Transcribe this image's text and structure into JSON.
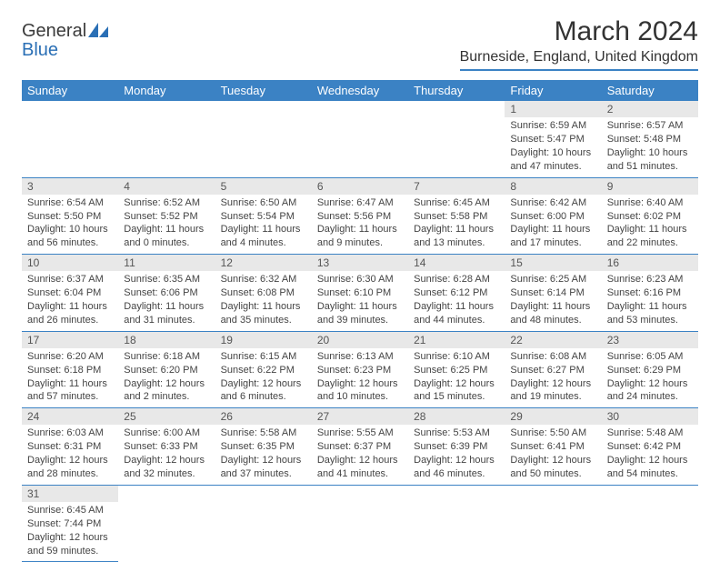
{
  "logo": {
    "general": "General",
    "blue": "Blue"
  },
  "title": "March 2024",
  "location": "Burneside, England, United Kingdom",
  "colors": {
    "header_bg": "#3b82c4",
    "header_text": "#ffffff",
    "daynum_bg": "#e8e8e8",
    "rule": "#3b82c4",
    "logo_blue": "#2a6fb5"
  },
  "weekdays": [
    "Sunday",
    "Monday",
    "Tuesday",
    "Wednesday",
    "Thursday",
    "Friday",
    "Saturday"
  ],
  "weeks": [
    [
      null,
      null,
      null,
      null,
      null,
      {
        "n": "1",
        "sunrise": "Sunrise: 6:59 AM",
        "sunset": "Sunset: 5:47 PM",
        "daylight1": "Daylight: 10 hours",
        "daylight2": "and 47 minutes."
      },
      {
        "n": "2",
        "sunrise": "Sunrise: 6:57 AM",
        "sunset": "Sunset: 5:48 PM",
        "daylight1": "Daylight: 10 hours",
        "daylight2": "and 51 minutes."
      }
    ],
    [
      {
        "n": "3",
        "sunrise": "Sunrise: 6:54 AM",
        "sunset": "Sunset: 5:50 PM",
        "daylight1": "Daylight: 10 hours",
        "daylight2": "and 56 minutes."
      },
      {
        "n": "4",
        "sunrise": "Sunrise: 6:52 AM",
        "sunset": "Sunset: 5:52 PM",
        "daylight1": "Daylight: 11 hours",
        "daylight2": "and 0 minutes."
      },
      {
        "n": "5",
        "sunrise": "Sunrise: 6:50 AM",
        "sunset": "Sunset: 5:54 PM",
        "daylight1": "Daylight: 11 hours",
        "daylight2": "and 4 minutes."
      },
      {
        "n": "6",
        "sunrise": "Sunrise: 6:47 AM",
        "sunset": "Sunset: 5:56 PM",
        "daylight1": "Daylight: 11 hours",
        "daylight2": "and 9 minutes."
      },
      {
        "n": "7",
        "sunrise": "Sunrise: 6:45 AM",
        "sunset": "Sunset: 5:58 PM",
        "daylight1": "Daylight: 11 hours",
        "daylight2": "and 13 minutes."
      },
      {
        "n": "8",
        "sunrise": "Sunrise: 6:42 AM",
        "sunset": "Sunset: 6:00 PM",
        "daylight1": "Daylight: 11 hours",
        "daylight2": "and 17 minutes."
      },
      {
        "n": "9",
        "sunrise": "Sunrise: 6:40 AM",
        "sunset": "Sunset: 6:02 PM",
        "daylight1": "Daylight: 11 hours",
        "daylight2": "and 22 minutes."
      }
    ],
    [
      {
        "n": "10",
        "sunrise": "Sunrise: 6:37 AM",
        "sunset": "Sunset: 6:04 PM",
        "daylight1": "Daylight: 11 hours",
        "daylight2": "and 26 minutes."
      },
      {
        "n": "11",
        "sunrise": "Sunrise: 6:35 AM",
        "sunset": "Sunset: 6:06 PM",
        "daylight1": "Daylight: 11 hours",
        "daylight2": "and 31 minutes."
      },
      {
        "n": "12",
        "sunrise": "Sunrise: 6:32 AM",
        "sunset": "Sunset: 6:08 PM",
        "daylight1": "Daylight: 11 hours",
        "daylight2": "and 35 minutes."
      },
      {
        "n": "13",
        "sunrise": "Sunrise: 6:30 AM",
        "sunset": "Sunset: 6:10 PM",
        "daylight1": "Daylight: 11 hours",
        "daylight2": "and 39 minutes."
      },
      {
        "n": "14",
        "sunrise": "Sunrise: 6:28 AM",
        "sunset": "Sunset: 6:12 PM",
        "daylight1": "Daylight: 11 hours",
        "daylight2": "and 44 minutes."
      },
      {
        "n": "15",
        "sunrise": "Sunrise: 6:25 AM",
        "sunset": "Sunset: 6:14 PM",
        "daylight1": "Daylight: 11 hours",
        "daylight2": "and 48 minutes."
      },
      {
        "n": "16",
        "sunrise": "Sunrise: 6:23 AM",
        "sunset": "Sunset: 6:16 PM",
        "daylight1": "Daylight: 11 hours",
        "daylight2": "and 53 minutes."
      }
    ],
    [
      {
        "n": "17",
        "sunrise": "Sunrise: 6:20 AM",
        "sunset": "Sunset: 6:18 PM",
        "daylight1": "Daylight: 11 hours",
        "daylight2": "and 57 minutes."
      },
      {
        "n": "18",
        "sunrise": "Sunrise: 6:18 AM",
        "sunset": "Sunset: 6:20 PM",
        "daylight1": "Daylight: 12 hours",
        "daylight2": "and 2 minutes."
      },
      {
        "n": "19",
        "sunrise": "Sunrise: 6:15 AM",
        "sunset": "Sunset: 6:22 PM",
        "daylight1": "Daylight: 12 hours",
        "daylight2": "and 6 minutes."
      },
      {
        "n": "20",
        "sunrise": "Sunrise: 6:13 AM",
        "sunset": "Sunset: 6:23 PM",
        "daylight1": "Daylight: 12 hours",
        "daylight2": "and 10 minutes."
      },
      {
        "n": "21",
        "sunrise": "Sunrise: 6:10 AM",
        "sunset": "Sunset: 6:25 PM",
        "daylight1": "Daylight: 12 hours",
        "daylight2": "and 15 minutes."
      },
      {
        "n": "22",
        "sunrise": "Sunrise: 6:08 AM",
        "sunset": "Sunset: 6:27 PM",
        "daylight1": "Daylight: 12 hours",
        "daylight2": "and 19 minutes."
      },
      {
        "n": "23",
        "sunrise": "Sunrise: 6:05 AM",
        "sunset": "Sunset: 6:29 PM",
        "daylight1": "Daylight: 12 hours",
        "daylight2": "and 24 minutes."
      }
    ],
    [
      {
        "n": "24",
        "sunrise": "Sunrise: 6:03 AM",
        "sunset": "Sunset: 6:31 PM",
        "daylight1": "Daylight: 12 hours",
        "daylight2": "and 28 minutes."
      },
      {
        "n": "25",
        "sunrise": "Sunrise: 6:00 AM",
        "sunset": "Sunset: 6:33 PM",
        "daylight1": "Daylight: 12 hours",
        "daylight2": "and 32 minutes."
      },
      {
        "n": "26",
        "sunrise": "Sunrise: 5:58 AM",
        "sunset": "Sunset: 6:35 PM",
        "daylight1": "Daylight: 12 hours",
        "daylight2": "and 37 minutes."
      },
      {
        "n": "27",
        "sunrise": "Sunrise: 5:55 AM",
        "sunset": "Sunset: 6:37 PM",
        "daylight1": "Daylight: 12 hours",
        "daylight2": "and 41 minutes."
      },
      {
        "n": "28",
        "sunrise": "Sunrise: 5:53 AM",
        "sunset": "Sunset: 6:39 PM",
        "daylight1": "Daylight: 12 hours",
        "daylight2": "and 46 minutes."
      },
      {
        "n": "29",
        "sunrise": "Sunrise: 5:50 AM",
        "sunset": "Sunset: 6:41 PM",
        "daylight1": "Daylight: 12 hours",
        "daylight2": "and 50 minutes."
      },
      {
        "n": "30",
        "sunrise": "Sunrise: 5:48 AM",
        "sunset": "Sunset: 6:42 PM",
        "daylight1": "Daylight: 12 hours",
        "daylight2": "and 54 minutes."
      }
    ],
    [
      {
        "n": "31",
        "sunrise": "Sunrise: 6:45 AM",
        "sunset": "Sunset: 7:44 PM",
        "daylight1": "Daylight: 12 hours",
        "daylight2": "and 59 minutes."
      },
      null,
      null,
      null,
      null,
      null,
      null
    ]
  ]
}
